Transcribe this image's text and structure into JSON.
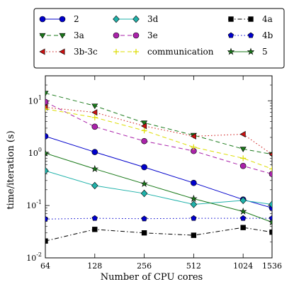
{
  "chart_data": {
    "type": "line",
    "title": "",
    "xlabel": "Number of CPU cores",
    "ylabel": "time/iteration (s)",
    "x_scale": "log",
    "y_scale": "log",
    "x": [
      64,
      128,
      256,
      512,
      1024,
      1536
    ],
    "x_tick_labels": [
      "64",
      "128",
      "256",
      "512",
      "1024",
      "1536"
    ],
    "y_tick_labels": [
      "10^-2",
      "10^-1",
      "10^0",
      "10^1"
    ],
    "y_tick_label_parts": [
      [
        "10",
        "-2"
      ],
      [
        "10",
        "-1"
      ],
      [
        "10",
        "0"
      ],
      [
        "10",
        "1"
      ]
    ],
    "ylim": [
      0.01,
      30
    ],
    "grid": false,
    "legend": "top, outside plot, 3 columns",
    "series": [
      {
        "name": "2",
        "values": [
          2.1,
          1.05,
          0.54,
          0.27,
          0.13,
          0.09
        ],
        "color": "#0000cc",
        "marker": "circle",
        "dash": "solid"
      },
      {
        "name": "3a",
        "values": [
          14,
          8,
          3.8,
          2.2,
          1.2,
          0.95
        ],
        "color": "#1a7a1a",
        "marker": "triangle-down",
        "dash": "dashed"
      },
      {
        "name": "3b-3c",
        "values": [
          7.5,
          6,
          3.3,
          2.1,
          2.3,
          0.95
        ],
        "color": "#cc1111",
        "marker": "triangle-left",
        "dash": "dotted"
      },
      {
        "name": "3d",
        "values": [
          0.46,
          0.24,
          0.17,
          0.105,
          0.125,
          0.105
        ],
        "color": "#20b2aa",
        "marker": "diamond",
        "dash": "solid"
      },
      {
        "name": "3e",
        "values": [
          9.5,
          3.2,
          1.7,
          1.1,
          0.57,
          0.4
        ],
        "color": "#aa22aa",
        "marker": "circle",
        "dash": "dashed"
      },
      {
        "name": "communication",
        "values": [
          7.0,
          4.8,
          2.7,
          1.3,
          0.8,
          0.5
        ],
        "color": "#dddd00",
        "marker": "plus",
        "dash": "dashed"
      },
      {
        "name": "4a",
        "values": [
          0.021,
          0.035,
          0.03,
          0.027,
          0.038,
          0.031
        ],
        "color": "#000000",
        "marker": "square",
        "dash": "dashdot"
      },
      {
        "name": "4b",
        "values": [
          0.055,
          0.057,
          0.056,
          0.057,
          0.057,
          0.057
        ],
        "color": "#0000cc",
        "marker": "pentagon",
        "dash": "dotted"
      },
      {
        "name": "5",
        "values": [
          1.0,
          0.5,
          0.26,
          0.135,
          0.077,
          0.048
        ],
        "color": "#1a7a1a",
        "marker": "star",
        "dash": "solid"
      }
    ]
  }
}
